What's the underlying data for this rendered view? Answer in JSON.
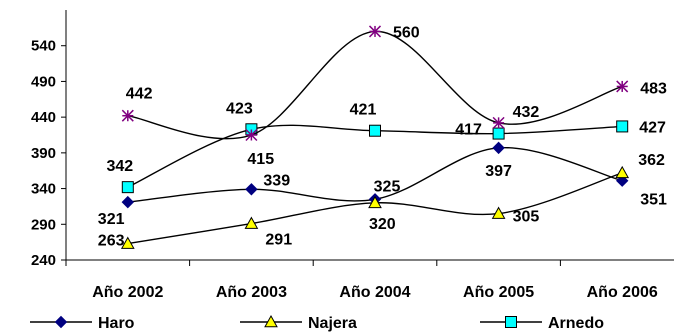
{
  "chart_data": {
    "type": "line",
    "title": "",
    "xlabel": "",
    "ylabel": "",
    "categories": [
      "Año 2002",
      "Año 2003",
      "Año 2004",
      "Año 2005",
      "Año 2006"
    ],
    "ylim": [
      240,
      590
    ],
    "yticks": [
      240,
      290,
      340,
      390,
      440,
      490,
      540
    ],
    "grid": false,
    "legend": "bottom",
    "smooth": true,
    "series": [
      {
        "name": "Haro",
        "values": [
          321,
          339,
          325,
          397,
          351
        ],
        "color": "#000080",
        "marker": "diamond",
        "show_in_legend": true
      },
      {
        "name": "Najera",
        "values": [
          263,
          291,
          320,
          305,
          362
        ],
        "color": "#ffff00",
        "marker": "triangle",
        "show_in_legend": true
      },
      {
        "name": "Arnedo",
        "values": [
          342,
          423,
          421,
          417,
          427
        ],
        "color": "#00ffff",
        "marker": "square",
        "show_in_legend": true
      },
      {
        "name": "",
        "values": [
          442,
          415,
          560,
          432,
          483
        ],
        "color": "#800080",
        "marker": "star",
        "show_in_legend": false
      }
    ],
    "data_labels": [
      [
        "321",
        "339",
        "325",
        "397",
        "351"
      ],
      [
        "263",
        "291",
        "320",
        "305",
        "362"
      ],
      [
        "342",
        "423",
        "421",
        "417",
        "427"
      ],
      [
        "442",
        "415",
        "560",
        "432",
        "483"
      ]
    ]
  }
}
